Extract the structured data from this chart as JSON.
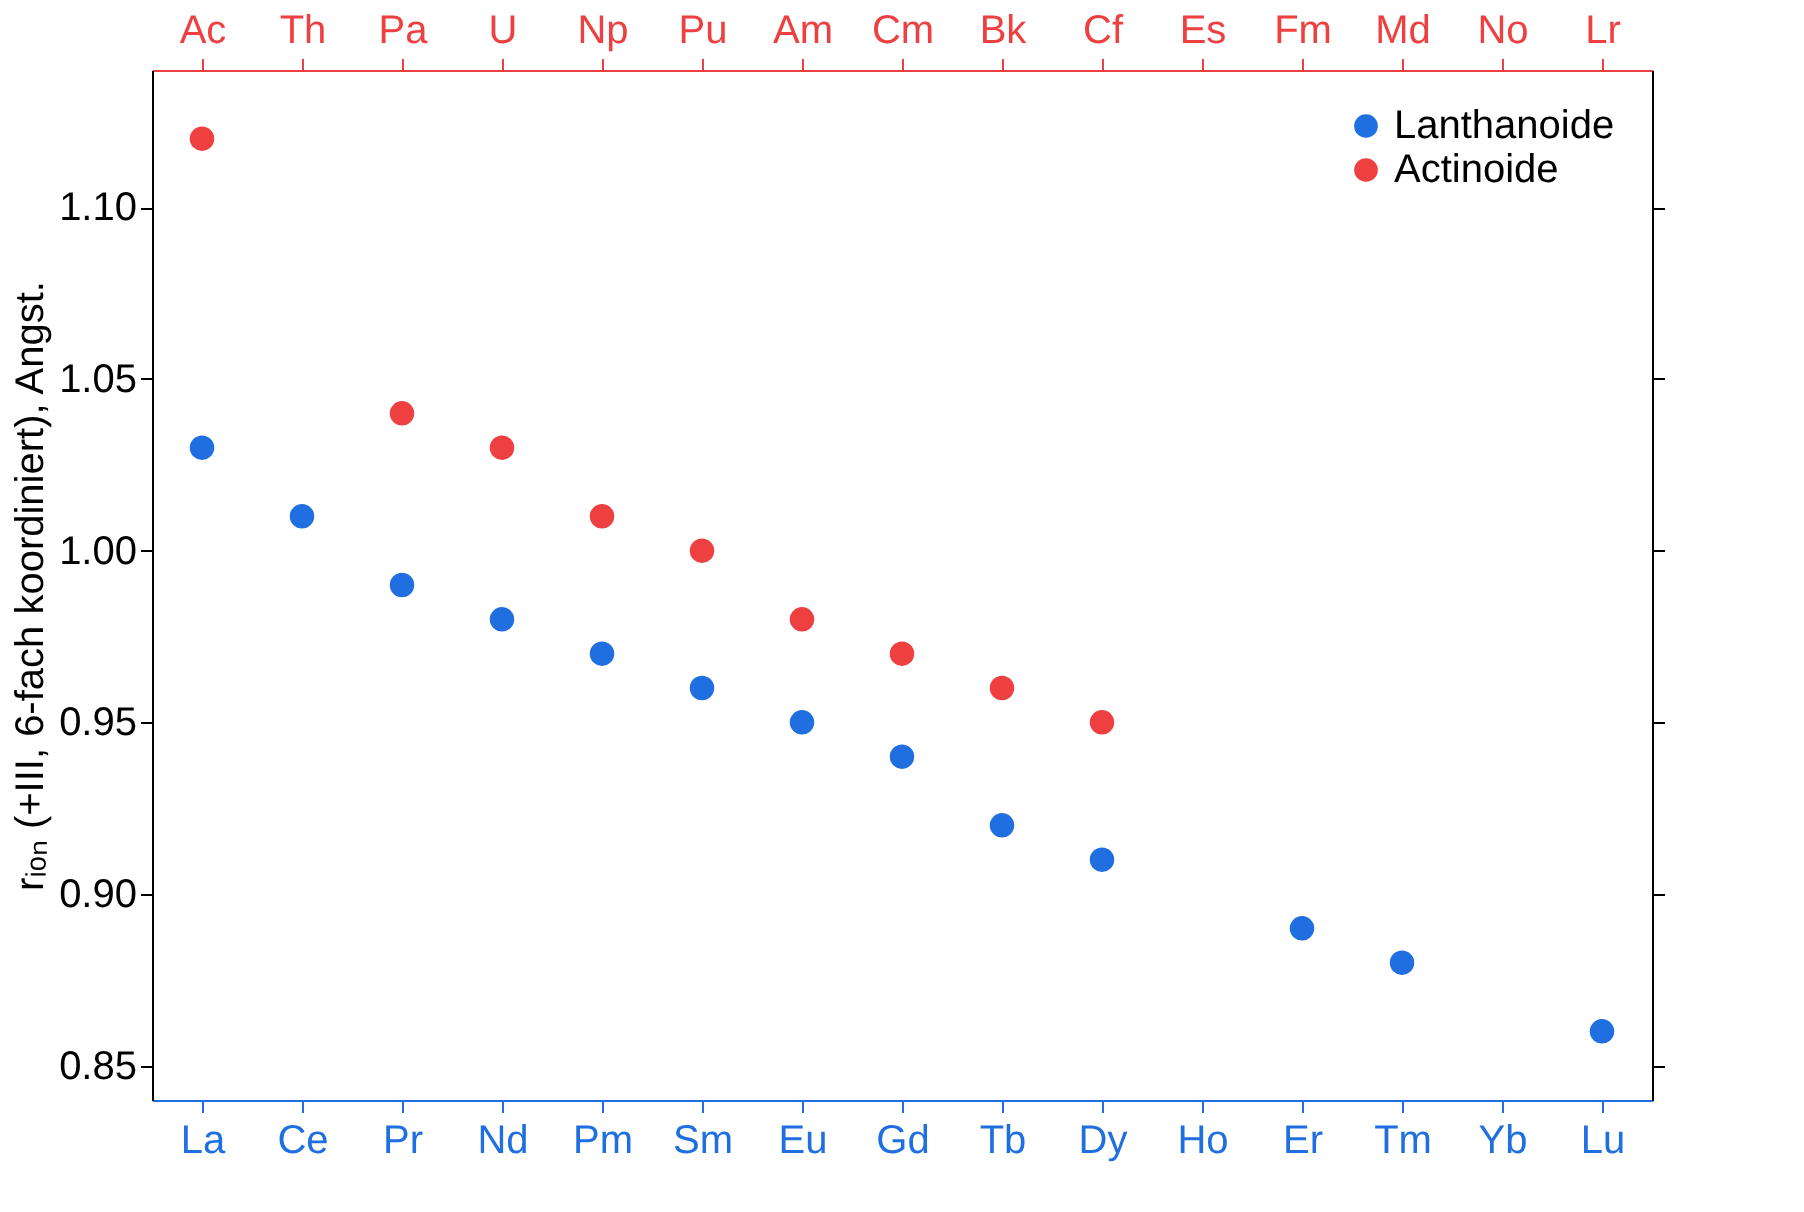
{
  "chart_data": {
    "type": "scatter",
    "ylabel": "rᵢₒₙ (+III, 6-fach koordiniert), Angst.",
    "categories": [
      "La",
      "Ce",
      "Pr",
      "Nd",
      "Pm",
      "Sm",
      "Eu",
      "Gd",
      "Tb",
      "Dy",
      "Ho",
      "Er",
      "Tm",
      "Yb",
      "Lu"
    ],
    "annotations": [
      "Ac",
      "Th",
      "Pa",
      "U",
      "Np",
      "Pu",
      "Am",
      "Cm",
      "Bk",
      "Cf",
      "Es",
      "Fm",
      "Md",
      "No",
      "Lr"
    ],
    "series": [
      {
        "name": "Lanthanoide",
        "color": "#1f6fe0",
        "values": [
          1.03,
          1.01,
          0.99,
          0.98,
          0.97,
          0.96,
          0.95,
          0.94,
          0.92,
          0.91,
          null,
          0.89,
          0.88,
          null,
          0.86
        ]
      },
      {
        "name": "Actinoide",
        "color": "#ee4040",
        "values": [
          1.12,
          null,
          1.04,
          1.03,
          1.01,
          1.0,
          0.98,
          0.97,
          0.96,
          0.95,
          null,
          null,
          null,
          null,
          null
        ]
      }
    ],
    "ylim": [
      0.84,
      1.14
    ],
    "yticks": [
      {
        "value": 0.85,
        "label": "0.85"
      },
      {
        "value": 0.9,
        "label": "0.90"
      },
      {
        "value": 0.95,
        "label": "0.95"
      },
      {
        "value": 1.0,
        "label": "1.00"
      },
      {
        "value": 1.05,
        "label": "1.05"
      },
      {
        "value": 1.1,
        "label": "1.10"
      }
    ],
    "marker": "circle",
    "grid": false,
    "legend": "top right"
  }
}
